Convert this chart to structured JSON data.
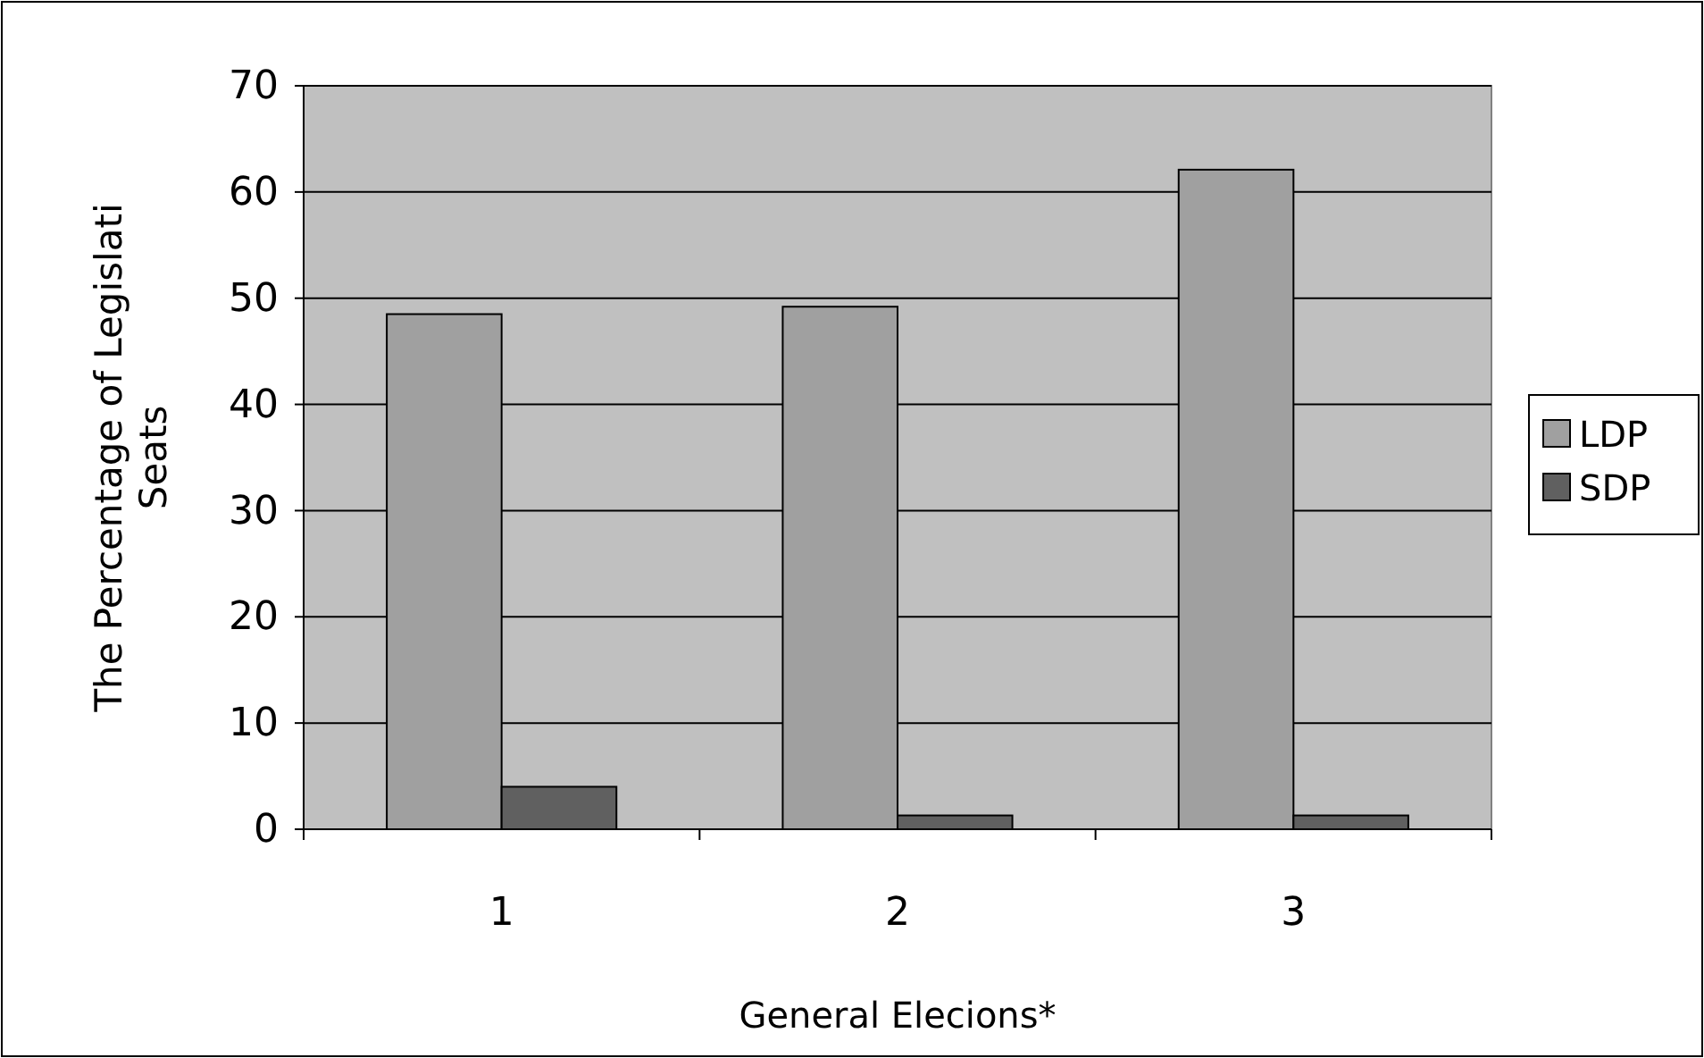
{
  "chart_data": {
    "type": "bar",
    "xlabel": "General Elecions*",
    "ylabel": "The Percentage of Legislati Seats",
    "categories": [
      "1",
      "2",
      "3"
    ],
    "series": [
      {
        "name": "LDP",
        "color": "#a0a0a0",
        "values": [
          48.5,
          49.2,
          62.1
        ]
      },
      {
        "name": "SDP",
        "color": "#606060",
        "values": [
          4,
          1.3,
          1.3
        ]
      }
    ],
    "ylim": [
      0,
      70
    ],
    "yticks": [
      0,
      10,
      20,
      30,
      40,
      50,
      60,
      70
    ],
    "grid": "y",
    "legend": "right"
  }
}
